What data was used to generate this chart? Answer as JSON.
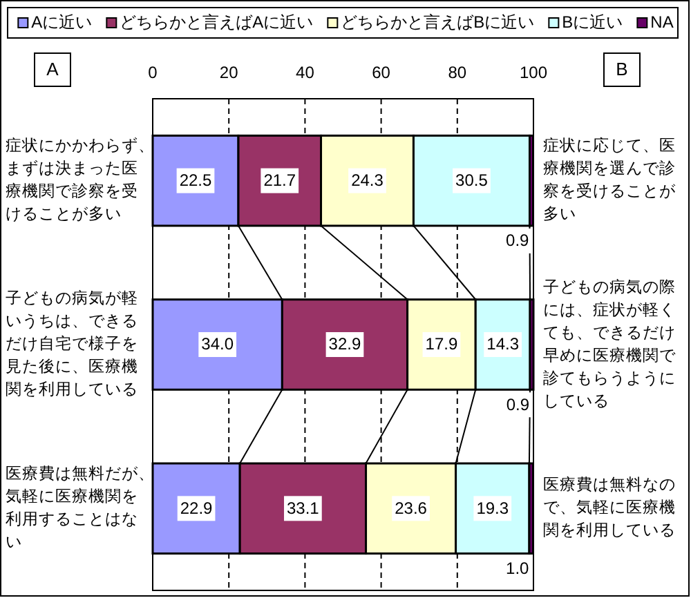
{
  "chart_data": {
    "type": "bar",
    "orientation": "horizontal",
    "stacked": true,
    "categories": [
      "症状にかかわらず、まずは決まった医療機関で診察を受けることが多い",
      "子どもの病気が軽いうちは、できるだけ自宅で様子を見た後に、医療機関を利用している",
      "医療費は無料だが、気軽に医療機関を利用することはない"
    ],
    "y2_categories": [
      "症状に応じて、医療機関を選んで診察を受けることが多い",
      "子どもの病気の際には、症状が軽くても、できるだけ早めに医療機関で診てもらうようにしている",
      "医療費は無料なので、気軽に医療機関を利用している"
    ],
    "ylabel": "A",
    "y2label": "B",
    "series": [
      {
        "name": "Aに近い",
        "color": "#9999ff",
        "values": [
          22.5,
          34.0,
          22.9
        ],
        "value_labels": [
          "22.5",
          "34.0",
          "22.9"
        ]
      },
      {
        "name": "どちらかと言えばAに近い",
        "color": "#993366",
        "values": [
          21.7,
          32.9,
          33.1
        ],
        "value_labels": [
          "21.7",
          "32.9",
          "33.1"
        ]
      },
      {
        "name": "どちらかと言えばBに近い",
        "color": "#ffffcc",
        "values": [
          24.3,
          17.9,
          23.6
        ],
        "value_labels": [
          "24.3",
          "17.9",
          "23.6"
        ]
      },
      {
        "name": "Bに近い",
        "color": "#ccffff",
        "values": [
          30.5,
          14.3,
          19.3
        ],
        "value_labels": [
          "30.5",
          "14.3",
          "19.3"
        ]
      },
      {
        "name": "NA",
        "color": "#660066",
        "values": [
          0.9,
          0.9,
          1.0
        ],
        "value_labels": [
          "0.9",
          "0.9",
          "1.0"
        ]
      }
    ],
    "xlim": [
      0,
      100
    ],
    "xticks": [
      0,
      20,
      40,
      60,
      80,
      100
    ],
    "grid": "x",
    "legend": "top"
  }
}
